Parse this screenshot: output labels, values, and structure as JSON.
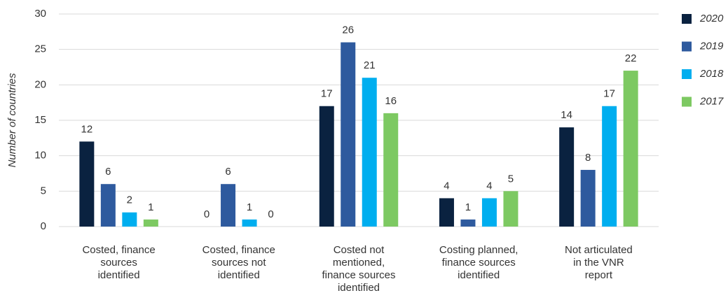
{
  "chart_data": {
    "type": "bar",
    "y_label": "Number of countries",
    "categories": [
      [
        "Costed, finance",
        "sources",
        "identified"
      ],
      [
        "Costed, finance",
        "sources not",
        "identified"
      ],
      [
        "Costed not",
        "mentioned,",
        "finance sources",
        "identified"
      ],
      [
        "Costing planned,",
        "finance sources",
        "identified"
      ],
      [
        "Not articulated",
        "in the VNR",
        "report"
      ]
    ],
    "series": [
      {
        "name": "2020",
        "color": "#0a2240",
        "values": [
          12,
          0,
          17,
          4,
          14
        ]
      },
      {
        "name": "2019",
        "color": "#2e5a9e",
        "values": [
          6,
          6,
          26,
          1,
          8
        ]
      },
      {
        "name": "2018",
        "color": "#00aeef",
        "values": [
          2,
          1,
          21,
          4,
          17
        ]
      },
      {
        "name": "2017",
        "color": "#7dc962",
        "values": [
          1,
          0,
          16,
          5,
          22
        ]
      }
    ],
    "ylim": [
      0,
      30
    ],
    "yticks": [
      0,
      5,
      10,
      15,
      20,
      25,
      30
    ],
    "grid": true,
    "legend": "right"
  }
}
